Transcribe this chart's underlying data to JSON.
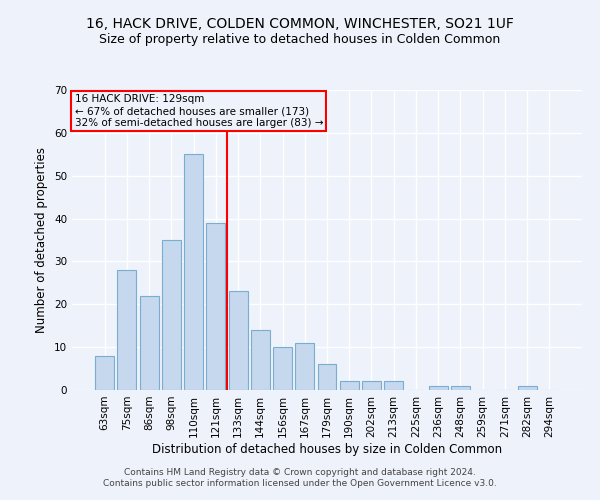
{
  "title1": "16, HACK DRIVE, COLDEN COMMON, WINCHESTER, SO21 1UF",
  "title2": "Size of property relative to detached houses in Colden Common",
  "xlabel": "Distribution of detached houses by size in Colden Common",
  "ylabel": "Number of detached properties",
  "categories": [
    "63sqm",
    "75sqm",
    "86sqm",
    "98sqm",
    "110sqm",
    "121sqm",
    "133sqm",
    "144sqm",
    "156sqm",
    "167sqm",
    "179sqm",
    "190sqm",
    "202sqm",
    "213sqm",
    "225sqm",
    "236sqm",
    "248sqm",
    "259sqm",
    "271sqm",
    "282sqm",
    "294sqm"
  ],
  "values": [
    8,
    28,
    22,
    35,
    55,
    39,
    23,
    14,
    10,
    11,
    6,
    2,
    2,
    2,
    0,
    1,
    1,
    0,
    0,
    1,
    0
  ],
  "bar_color": "#c5d8ed",
  "bar_edge_color": "#7aaed0",
  "vline_x": 5.5,
  "vline_color": "red",
  "ylim": [
    0,
    70
  ],
  "yticks": [
    0,
    10,
    20,
    30,
    40,
    50,
    60,
    70
  ],
  "annotation_line1": "16 HACK DRIVE: 129sqm",
  "annotation_line2": "← 67% of detached houses are smaller (173)",
  "annotation_line3": "32% of semi-detached houses are larger (83) →",
  "annotation_box_color": "red",
  "footer1": "Contains HM Land Registry data © Crown copyright and database right 2024.",
  "footer2": "Contains public sector information licensed under the Open Government Licence v3.0.",
  "bg_color": "#eef2fa",
  "grid_color": "#ffffff",
  "title_fontsize": 10,
  "subtitle_fontsize": 9,
  "axis_label_fontsize": 8.5,
  "tick_fontsize": 7.5,
  "footer_fontsize": 6.5,
  "ann_fontsize": 7.5
}
